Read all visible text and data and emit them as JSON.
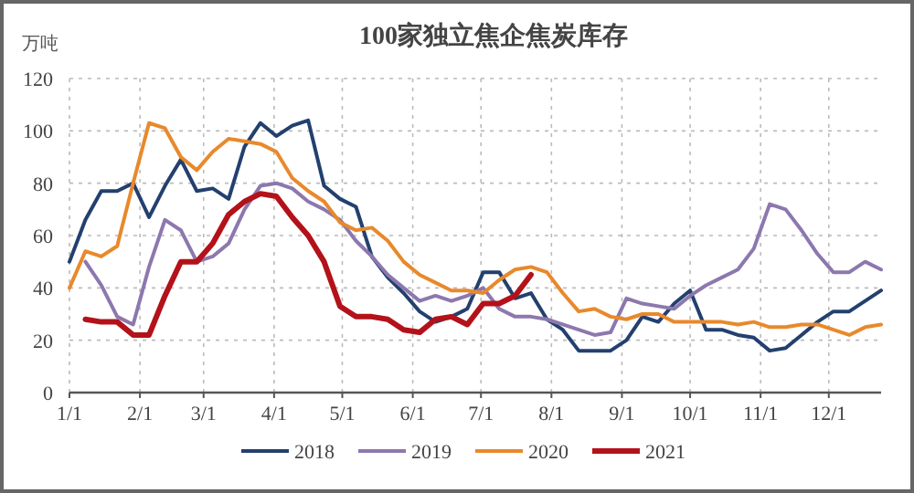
{
  "chart_data": {
    "type": "line",
    "title": "100家独立焦企焦炭库存",
    "ylabel": "万吨",
    "xlim": [
      "--01-01",
      "--12-24"
    ],
    "xticks": [
      {
        "value": "--01-01",
        "label": "1/1"
      },
      {
        "value": "--02-01",
        "label": "2/1"
      },
      {
        "value": "--03-01",
        "label": "3/1"
      },
      {
        "value": "--04-01",
        "label": "4/1"
      },
      {
        "value": "--05-01",
        "label": "5/1"
      },
      {
        "value": "--06-01",
        "label": "6/1"
      },
      {
        "value": "--07-01",
        "label": "7/1"
      },
      {
        "value": "--08-01",
        "label": "8/1"
      },
      {
        "value": "--09-01",
        "label": "9/1"
      },
      {
        "value": "--10-01",
        "label": "10/1"
      },
      {
        "value": "--11-01",
        "label": "11/1"
      },
      {
        "value": "--12-01",
        "label": "12/1"
      }
    ],
    "ylim": [
      0,
      120
    ],
    "yticks": [
      0,
      20,
      40,
      60,
      80,
      100,
      120
    ],
    "grid": true,
    "legend": "bottom",
    "marker": "none",
    "line_style": "solid",
    "series": [
      {
        "name": "2018",
        "color": "#23406e",
        "x": [
          "--01-01",
          "--01-08",
          "--01-15",
          "--01-22",
          "--01-29",
          "--02-05",
          "--02-12",
          "--02-19",
          "--02-26",
          "--03-05",
          "--03-12",
          "--03-19",
          "--03-26",
          "--04-02",
          "--04-09",
          "--04-16",
          "--04-23",
          "--04-30",
          "--05-07",
          "--05-14",
          "--05-21",
          "--05-28",
          "--06-04",
          "--06-11",
          "--06-18",
          "--06-25",
          "--07-02",
          "--07-09",
          "--07-16",
          "--07-23",
          "--07-30",
          "--08-06",
          "--08-13",
          "--08-20",
          "--08-27",
          "--09-03",
          "--09-10",
          "--09-17",
          "--09-24",
          "--10-01",
          "--10-08",
          "--10-15",
          "--10-22",
          "--10-29",
          "--11-05",
          "--11-12",
          "--11-19",
          "--11-26",
          "--12-03",
          "--12-10",
          "--12-17",
          "--12-24"
        ],
        "values": [
          50,
          66,
          77,
          77,
          80,
          67,
          79,
          89,
          77,
          78,
          74,
          94,
          103,
          98,
          102,
          104,
          79,
          74,
          71,
          52,
          44,
          38,
          31,
          27,
          29,
          32,
          46,
          46,
          36,
          38,
          28,
          24,
          16,
          16,
          16,
          20,
          29,
          27,
          34,
          39,
          24,
          24,
          22,
          21,
          16,
          17,
          22,
          27,
          31,
          31,
          35,
          39
        ]
      },
      {
        "name": "2019",
        "color": "#8c78ae",
        "x": [
          "--01-08",
          "--01-15",
          "--01-22",
          "--01-29",
          "--02-05",
          "--02-12",
          "--02-19",
          "--02-26",
          "--03-05",
          "--03-12",
          "--03-19",
          "--03-26",
          "--04-02",
          "--04-09",
          "--04-16",
          "--04-23",
          "--04-30",
          "--05-07",
          "--05-14",
          "--05-21",
          "--05-28",
          "--06-04",
          "--06-11",
          "--06-18",
          "--06-25",
          "--07-02",
          "--07-09",
          "--07-16",
          "--07-23",
          "--07-30",
          "--08-06",
          "--08-13",
          "--08-20",
          "--08-27",
          "--09-03",
          "--09-10",
          "--09-17",
          "--09-24",
          "--10-01",
          "--10-08",
          "--10-15",
          "--10-22",
          "--10-29",
          "--11-05",
          "--11-12",
          "--11-19",
          "--11-26",
          "--12-03",
          "--12-10",
          "--12-17",
          "--12-24"
        ],
        "values": [
          50,
          41,
          29,
          26,
          48,
          66,
          62,
          50,
          52,
          57,
          70,
          79,
          80,
          78,
          73,
          70,
          66,
          58,
          52,
          45,
          40,
          35,
          37,
          35,
          37,
          40,
          32,
          29,
          29,
          28,
          26,
          24,
          22,
          23,
          36,
          34,
          33,
          32,
          37,
          41,
          44,
          47,
          55,
          72,
          70,
          62,
          53,
          46,
          46,
          50,
          47
        ]
      },
      {
        "name": "2020",
        "color": "#e8892c",
        "x": [
          "--01-01",
          "--01-08",
          "--01-15",
          "--01-22",
          "--01-29",
          "--02-05",
          "--02-12",
          "--02-19",
          "--02-26",
          "--03-05",
          "--03-12",
          "--03-19",
          "--03-26",
          "--04-02",
          "--04-09",
          "--04-16",
          "--04-23",
          "--04-30",
          "--05-07",
          "--05-14",
          "--05-21",
          "--05-28",
          "--06-04",
          "--06-11",
          "--06-18",
          "--06-25",
          "--07-02",
          "--07-09",
          "--07-16",
          "--07-23",
          "--07-30",
          "--08-06",
          "--08-13",
          "--08-20",
          "--08-27",
          "--09-03",
          "--09-10",
          "--09-17",
          "--09-24",
          "--10-01",
          "--10-08",
          "--10-15",
          "--10-22",
          "--10-29",
          "--11-05",
          "--11-12",
          "--11-19",
          "--11-26",
          "--12-03",
          "--12-10",
          "--12-17",
          "--12-24"
        ],
        "values": [
          40,
          54,
          52,
          56,
          80,
          103,
          101,
          90,
          85,
          92,
          97,
          96,
          95,
          92,
          82,
          77,
          73,
          65,
          62,
          63,
          58,
          50,
          45,
          42,
          39,
          39,
          38,
          43,
          47,
          48,
          46,
          38,
          31,
          32,
          29,
          28,
          30,
          30,
          27,
          27,
          27,
          27,
          26,
          27,
          25,
          25,
          26,
          26,
          24,
          22,
          25,
          26
        ]
      },
      {
        "name": "2021",
        "color": "#b3121a",
        "x": [
          "--01-08",
          "--01-15",
          "--01-22",
          "--01-29",
          "--02-05",
          "--02-12",
          "--02-19",
          "--02-26",
          "--03-05",
          "--03-12",
          "--03-19",
          "--03-26",
          "--04-02",
          "--04-09",
          "--04-16",
          "--04-23",
          "--04-30",
          "--05-07",
          "--05-14",
          "--05-21",
          "--05-28",
          "--06-04",
          "--06-11",
          "--06-18",
          "--06-25",
          "--07-02",
          "--07-09",
          "--07-16",
          "--07-23"
        ],
        "values": [
          28,
          27,
          27,
          22,
          22,
          37,
          50,
          50,
          57,
          68,
          73,
          76,
          75,
          67,
          60,
          50,
          33,
          29,
          29,
          28,
          24,
          23,
          28,
          29,
          26,
          34,
          34,
          37,
          45
        ]
      }
    ]
  }
}
